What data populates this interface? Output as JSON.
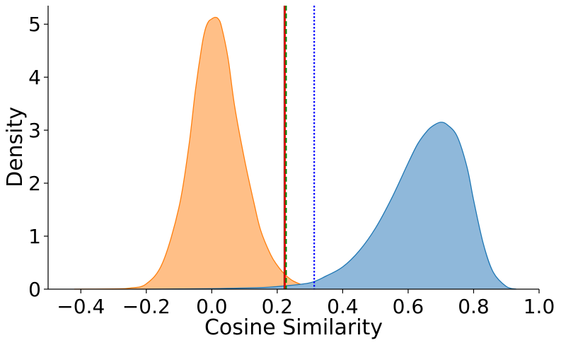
{
  "chart_data": {
    "type": "area",
    "xlabel": "Cosine Similarity",
    "ylabel": "Density",
    "xlim": [
      -0.5,
      1.0
    ],
    "ylim": [
      0,
      5.35
    ],
    "x_ticks": [
      -0.4,
      -0.2,
      0.0,
      0.2,
      0.4,
      0.6,
      0.8,
      1.0
    ],
    "x_tick_labels": [
      "−0.4",
      "−0.2",
      "0.0",
      "0.2",
      "0.4",
      "0.6",
      "0.8",
      "1.0"
    ],
    "y_ticks": [
      0,
      1,
      2,
      3,
      4,
      5
    ],
    "y_tick_labels": [
      "0",
      "1",
      "2",
      "3",
      "4",
      "5"
    ],
    "grid": false,
    "series": [
      {
        "color": "#ff7f0e",
        "fill": "#ffbf87",
        "x": [
          -0.42,
          -0.3,
          -0.25,
          -0.2,
          -0.15,
          -0.1,
          -0.07,
          -0.05,
          -0.03,
          -0.02,
          -0.01,
          0.0,
          0.01,
          0.02,
          0.03,
          0.05,
          0.07,
          0.1,
          0.13,
          0.15,
          0.18,
          0.2,
          0.22,
          0.25,
          0.3,
          0.35,
          0.4
        ],
        "y": [
          0.0,
          0.005,
          0.02,
          0.1,
          0.5,
          1.55,
          2.7,
          3.75,
          4.6,
          4.9,
          5.05,
          5.1,
          5.13,
          5.1,
          4.95,
          4.35,
          3.45,
          2.45,
          1.6,
          1.1,
          0.65,
          0.45,
          0.3,
          0.15,
          0.04,
          0.01,
          0.0
        ]
      },
      {
        "color": "#1f77b4",
        "fill": "#8fb8da",
        "x": [
          -0.2,
          0.0,
          0.15,
          0.22,
          0.3,
          0.35,
          0.4,
          0.45,
          0.5,
          0.55,
          0.6,
          0.63,
          0.66,
          0.68,
          0.7,
          0.72,
          0.75,
          0.78,
          0.8,
          0.83,
          0.86,
          0.9,
          0.93
        ],
        "y": [
          0.0,
          0.01,
          0.03,
          0.06,
          0.12,
          0.25,
          0.42,
          0.72,
          1.15,
          1.72,
          2.38,
          2.75,
          3.0,
          3.1,
          3.15,
          3.1,
          2.88,
          2.3,
          1.68,
          0.85,
          0.32,
          0.05,
          0.0
        ]
      }
    ],
    "vlines": [
      {
        "x": 0.222,
        "color": "#8b0000",
        "style": "solid"
      },
      {
        "x": 0.224,
        "color": "#ff0000",
        "style": "solid"
      },
      {
        "x": 0.227,
        "color": "#008000",
        "style": "dashed"
      },
      {
        "x": 0.313,
        "color": "#0000ff",
        "style": "dotted"
      }
    ]
  }
}
